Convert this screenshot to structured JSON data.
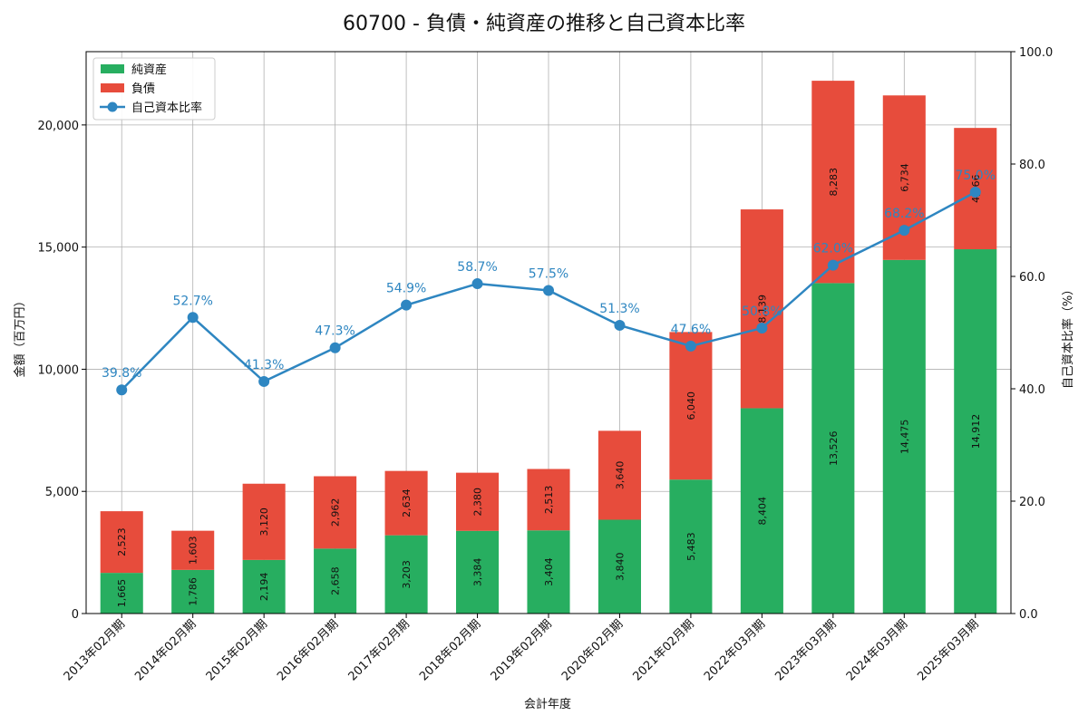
{
  "chart_data": {
    "type": "bar",
    "stacked": true,
    "title": "60700 - 負債・純資産の推移と自己資本比率",
    "xlabel": "会計年度",
    "ylabel": "金額（百万円）",
    "y2label": "自己資本比率（%）",
    "ylim": [
      0,
      23000
    ],
    "y2lim": [
      0,
      100
    ],
    "yticks": [
      0,
      5000,
      10000,
      15000,
      20000
    ],
    "ytick_labels": [
      "0",
      "5,000",
      "10,000",
      "15,000",
      "20,000"
    ],
    "y2ticks": [
      0,
      20,
      40,
      60,
      80,
      100
    ],
    "y2tick_labels": [
      "0.0",
      "20.0",
      "40.0",
      "60.0",
      "80.0",
      "100.0"
    ],
    "grid": true,
    "legend_position": "top-left",
    "categories": [
      "2013年02月期",
      "2014年02月期",
      "2015年02月期",
      "2016年02月期",
      "2017年02月期",
      "2018年02月期",
      "2019年02月期",
      "2020年02月期",
      "2021年02月期",
      "2022年03月期",
      "2023年03月期",
      "2024年03月期",
      "2025年03月期"
    ],
    "series": [
      {
        "name": "純資産",
        "color": "#27ae60",
        "values": [
          1665,
          1786,
          2194,
          2658,
          3203,
          3384,
          3404,
          3840,
          5483,
          8404,
          13526,
          14475,
          14912
        ],
        "labels": [
          "1,665",
          "1,786",
          "2,194",
          "2,658",
          "3,203",
          "3,384",
          "3,404",
          "3,840",
          "5,483",
          "8,404",
          "13,526",
          "14,475",
          "14,912"
        ]
      },
      {
        "name": "負債",
        "color": "#e74c3c",
        "values": [
          2523,
          1603,
          3120,
          2962,
          2634,
          2380,
          2513,
          3640,
          6040,
          8139,
          8283,
          6734,
          4966
        ],
        "labels": [
          "2,523",
          "1,603",
          "3,120",
          "2,962",
          "2,634",
          "2,380",
          "2,513",
          "3,640",
          "6,040",
          "8,139",
          "8,283",
          "6,734",
          "4,966"
        ]
      },
      {
        "name": "自己資本比率",
        "type": "line",
        "axis": "right",
        "color": "#2e86c1",
        "values": [
          39.8,
          52.7,
          41.3,
          47.3,
          54.9,
          58.7,
          57.5,
          51.3,
          47.6,
          50.8,
          62.0,
          68.2,
          75.0
        ],
        "labels": [
          "39.8%",
          "52.7%",
          "41.3%",
          "47.3%",
          "54.9%",
          "58.7%",
          "57.5%",
          "51.3%",
          "47.6%",
          "50.8%",
          "62.0%",
          "68.2%",
          "75.0%"
        ]
      }
    ]
  }
}
